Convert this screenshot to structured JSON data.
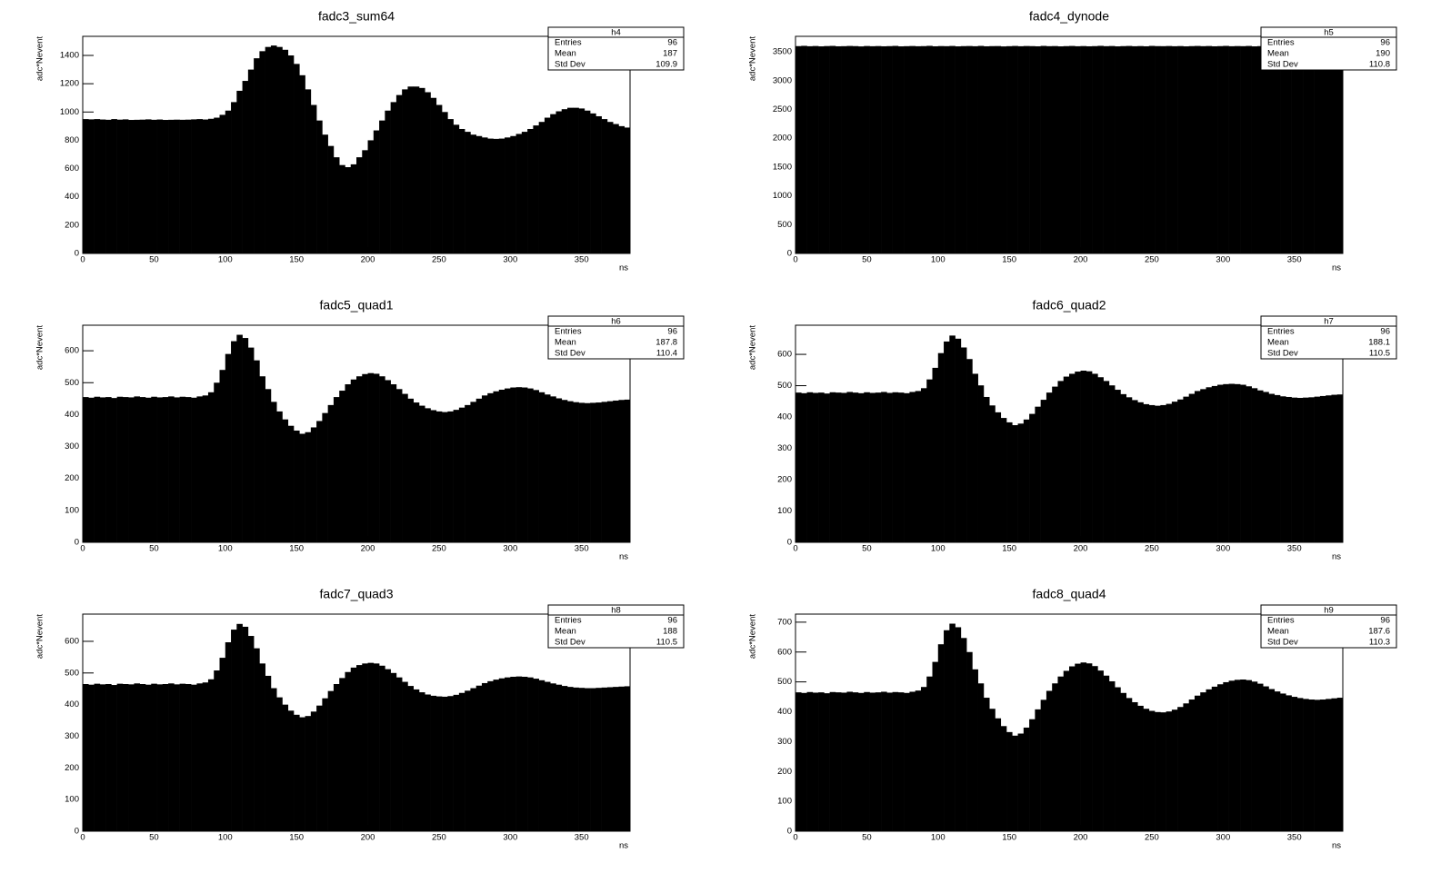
{
  "chart_data": [
    {
      "type": "histogram",
      "title": "fadc3_sum64",
      "x_label": "ns",
      "y_label": "adc*Nevent",
      "color": "#000000",
      "bins": [
        0,
        4,
        8,
        12,
        16,
        20,
        24,
        28,
        32,
        36,
        40,
        44,
        48,
        52,
        56,
        60,
        64,
        68,
        72,
        76,
        80,
        84,
        88,
        92,
        96,
        100,
        104,
        108,
        112,
        116,
        120,
        124,
        128,
        132,
        136,
        140,
        144,
        148,
        152,
        156,
        160,
        164,
        168,
        172,
        176,
        180,
        184,
        188,
        192,
        196,
        200,
        204,
        208,
        212,
        216,
        220,
        224,
        228,
        232,
        236,
        240,
        244,
        248,
        252,
        256,
        260,
        264,
        268,
        272,
        276,
        280,
        284,
        288,
        292,
        296,
        300,
        304,
        308,
        312,
        316,
        320,
        324,
        328,
        332,
        336,
        340,
        344,
        348,
        352,
        356,
        360,
        364,
        368,
        372,
        376,
        380,
        384
      ],
      "values": [
        950,
        948,
        950,
        947,
        945,
        950,
        946,
        948,
        944,
        945,
        946,
        948,
        945,
        947,
        944,
        945,
        946,
        945,
        946,
        948,
        950,
        947,
        952,
        960,
        980,
        1010,
        1070,
        1150,
        1220,
        1300,
        1380,
        1430,
        1460,
        1470,
        1460,
        1440,
        1400,
        1340,
        1260,
        1160,
        1050,
        940,
        840,
        760,
        680,
        625,
        610,
        630,
        680,
        730,
        800,
        870,
        940,
        1010,
        1070,
        1120,
        1160,
        1180,
        1180,
        1170,
        1140,
        1100,
        1050,
        1000,
        950,
        910,
        880,
        860,
        840,
        830,
        820,
        812,
        810,
        812,
        820,
        830,
        845,
        860,
        880,
        905,
        930,
        960,
        985,
        1005,
        1020,
        1030,
        1030,
        1025,
        1010,
        990,
        970,
        950,
        930,
        915,
        900,
        890
      ],
      "xlim": [
        0,
        384
      ],
      "xticks": [
        0,
        50,
        100,
        150,
        200,
        250,
        300,
        350
      ],
      "ylim": [
        0,
        1535
      ],
      "yticks": [
        0,
        200,
        400,
        600,
        800,
        1000,
        1200,
        1400
      ],
      "stats": {
        "name": "h4",
        "entries_label": "Entries",
        "entries": 96,
        "mean_label": "Mean",
        "mean": 187,
        "std_label": "Std Dev",
        "std": 109.9
      }
    },
    {
      "type": "histogram",
      "title": "fadc4_dynode",
      "x_label": "ns",
      "y_label": "adc*Nevent",
      "color": "#000000",
      "bins": [
        0,
        4,
        8,
        12,
        16,
        20,
        24,
        28,
        32,
        36,
        40,
        44,
        48,
        52,
        56,
        60,
        64,
        68,
        72,
        76,
        80,
        84,
        88,
        92,
        96,
        100,
        104,
        108,
        112,
        116,
        120,
        124,
        128,
        132,
        136,
        140,
        144,
        148,
        152,
        156,
        160,
        164,
        168,
        172,
        176,
        180,
        184,
        188,
        192,
        196,
        200,
        204,
        208,
        212,
        216,
        220,
        224,
        228,
        232,
        236,
        240,
        244,
        248,
        252,
        256,
        260,
        264,
        268,
        272,
        276,
        280,
        284,
        288,
        292,
        296,
        300,
        304,
        308,
        312,
        316,
        320,
        324,
        328,
        332,
        336,
        340,
        344,
        348,
        352,
        356,
        360,
        364,
        368,
        372,
        376,
        380,
        384
      ],
      "values": [
        3600,
        3605,
        3598,
        3602,
        3596,
        3601,
        3604,
        3597,
        3599,
        3603,
        3600,
        3595,
        3602,
        3598,
        3601,
        3597,
        3600,
        3604,
        3596,
        3599,
        3602,
        3598,
        3600,
        3605,
        3597,
        3601,
        3599,
        3603,
        3596,
        3600,
        3602,
        3598,
        3604,
        3597,
        3600,
        3601,
        3595,
        3599,
        3603,
        3598,
        3602,
        3600,
        3597,
        3604,
        3599,
        3601,
        3596,
        3600,
        3603,
        3598,
        3601,
        3597,
        3600,
        3605,
        3599,
        3602,
        3596,
        3600,
        3603,
        3598,
        3601,
        3597,
        3604,
        3600,
        3599,
        3602,
        3598,
        3601,
        3596,
        3600,
        3603,
        3599,
        3602,
        3597,
        3600,
        3604,
        3598,
        3601,
        3599,
        3603,
        3596,
        3600,
        3602,
        3598,
        3601,
        3597,
        3600,
        3604,
        3599,
        3602,
        3598,
        3600,
        3603,
        3597,
        3601,
        3599
      ],
      "xlim": [
        0,
        384
      ],
      "xticks": [
        0,
        50,
        100,
        150,
        200,
        250,
        300,
        350
      ],
      "ylim": [
        0,
        3770
      ],
      "yticks": [
        0,
        500,
        1000,
        1500,
        2000,
        2500,
        3000,
        3500
      ],
      "stats": {
        "name": "h5",
        "entries_label": "Entries",
        "entries": 96,
        "mean_label": "Mean",
        "mean": 190,
        "std_label": "Std Dev",
        "std": 110.8
      }
    },
    {
      "type": "histogram",
      "title": "fadc5_quad1",
      "x_label": "ns",
      "y_label": "adc*Nevent",
      "color": "#000000",
      "bins": [
        0,
        4,
        8,
        12,
        16,
        20,
        24,
        28,
        32,
        36,
        40,
        44,
        48,
        52,
        56,
        60,
        64,
        68,
        72,
        76,
        80,
        84,
        88,
        92,
        96,
        100,
        104,
        108,
        112,
        116,
        120,
        124,
        128,
        132,
        136,
        140,
        144,
        148,
        152,
        156,
        160,
        164,
        168,
        172,
        176,
        180,
        184,
        188,
        192,
        196,
        200,
        204,
        208,
        212,
        216,
        220,
        224,
        228,
        232,
        236,
        240,
        244,
        248,
        252,
        256,
        260,
        264,
        268,
        272,
        276,
        280,
        284,
        288,
        292,
        296,
        300,
        304,
        308,
        312,
        316,
        320,
        324,
        328,
        332,
        336,
        340,
        344,
        348,
        352,
        356,
        360,
        364,
        368,
        372,
        376,
        380,
        384
      ],
      "values": [
        455,
        453,
        456,
        454,
        455,
        452,
        456,
        455,
        454,
        457,
        455,
        453,
        456,
        454,
        455,
        457,
        454,
        456,
        455,
        453,
        457,
        460,
        470,
        500,
        540,
        590,
        630,
        650,
        640,
        610,
        570,
        520,
        480,
        440,
        410,
        385,
        365,
        350,
        340,
        345,
        360,
        380,
        405,
        430,
        455,
        475,
        495,
        510,
        520,
        527,
        530,
        528,
        520,
        508,
        495,
        480,
        465,
        450,
        438,
        428,
        420,
        414,
        410,
        408,
        410,
        415,
        422,
        430,
        440,
        450,
        460,
        467,
        473,
        478,
        482,
        485,
        486,
        485,
        482,
        477,
        470,
        463,
        457,
        451,
        446,
        442,
        439,
        437,
        436,
        437,
        438,
        440,
        442,
        444,
        446,
        447
      ],
      "xlim": [
        0,
        384
      ],
      "xticks": [
        0,
        50,
        100,
        150,
        200,
        250,
        300,
        350
      ],
      "ylim": [
        0,
        680
      ],
      "yticks": [
        0,
        100,
        200,
        300,
        400,
        500,
        600
      ],
      "stats": {
        "name": "h6",
        "entries_label": "Entries",
        "entries": 96,
        "mean_label": "Mean",
        "mean": 187.8,
        "std_label": "Std Dev",
        "std": 110.4
      }
    },
    {
      "type": "histogram",
      "title": "fadc6_quad2",
      "x_label": "ns",
      "y_label": "adc*Nevent",
      "color": "#000000",
      "bins": [
        0,
        4,
        8,
        12,
        16,
        20,
        24,
        28,
        32,
        36,
        40,
        44,
        48,
        52,
        56,
        60,
        64,
        68,
        72,
        76,
        80,
        84,
        88,
        92,
        96,
        100,
        104,
        108,
        112,
        116,
        120,
        124,
        128,
        132,
        136,
        140,
        144,
        148,
        152,
        156,
        160,
        164,
        168,
        172,
        176,
        180,
        184,
        188,
        192,
        196,
        200,
        204,
        208,
        212,
        216,
        220,
        224,
        228,
        232,
        236,
        240,
        244,
        248,
        252,
        256,
        260,
        264,
        268,
        272,
        276,
        280,
        284,
        288,
        292,
        296,
        300,
        304,
        308,
        312,
        316,
        320,
        324,
        328,
        332,
        336,
        340,
        344,
        348,
        352,
        356,
        360,
        364,
        368,
        372,
        376,
        380,
        384
      ],
      "values": [
        478,
        476,
        479,
        477,
        478,
        475,
        479,
        478,
        477,
        480,
        478,
        476,
        479,
        477,
        478,
        480,
        477,
        479,
        478,
        476,
        480,
        483,
        492,
        520,
        557,
        604,
        641,
        660,
        650,
        622,
        585,
        538,
        501,
        464,
        437,
        415,
        397,
        383,
        374,
        379,
        392,
        410,
        433,
        455,
        478,
        497,
        515,
        529,
        538,
        545,
        548,
        546,
        538,
        527,
        515,
        501,
        487,
        473,
        463,
        454,
        447,
        441,
        438,
        436,
        438,
        442,
        449,
        456,
        465,
        474,
        483,
        489,
        495,
        499,
        503,
        505,
        506,
        505,
        503,
        498,
        492,
        485,
        480,
        474,
        470,
        466,
        464,
        462,
        461,
        462,
        463,
        465,
        467,
        469,
        471,
        472
      ],
      "xlim": [
        0,
        384
      ],
      "xticks": [
        0,
        50,
        100,
        150,
        200,
        250,
        300,
        350
      ],
      "ylim": [
        0,
        693
      ],
      "yticks": [
        0,
        100,
        200,
        300,
        400,
        500,
        600
      ],
      "stats": {
        "name": "h7",
        "entries_label": "Entries",
        "entries": 96,
        "mean_label": "Mean",
        "mean": 188.1,
        "std_label": "Std Dev",
        "std": 110.5
      }
    },
    {
      "type": "histogram",
      "title": "fadc7_quad3",
      "x_label": "ns",
      "y_label": "adc*Nevent",
      "color": "#000000",
      "bins": [
        0,
        4,
        8,
        12,
        16,
        20,
        24,
        28,
        32,
        36,
        40,
        44,
        48,
        52,
        56,
        60,
        64,
        68,
        72,
        76,
        80,
        84,
        88,
        92,
        96,
        100,
        104,
        108,
        112,
        116,
        120,
        124,
        128,
        132,
        136,
        140,
        144,
        148,
        152,
        156,
        160,
        164,
        168,
        172,
        176,
        180,
        184,
        188,
        192,
        196,
        200,
        204,
        208,
        212,
        216,
        220,
        224,
        228,
        232,
        236,
        240,
        244,
        248,
        252,
        256,
        260,
        264,
        268,
        272,
        276,
        280,
        284,
        288,
        292,
        296,
        300,
        304,
        308,
        312,
        316,
        320,
        324,
        328,
        332,
        336,
        340,
        344,
        348,
        352,
        356,
        360,
        364,
        368,
        372,
        376,
        380,
        384
      ],
      "values": [
        465,
        463,
        466,
        464,
        465,
        462,
        466,
        465,
        464,
        467,
        465,
        463,
        466,
        464,
        465,
        467,
        464,
        466,
        465,
        463,
        467,
        470,
        480,
        508,
        548,
        597,
        637,
        655,
        646,
        617,
        578,
        530,
        491,
        452,
        423,
        400,
        381,
        368,
        360,
        364,
        378,
        397,
        420,
        443,
        465,
        484,
        503,
        517,
        525,
        530,
        532,
        530,
        523,
        512,
        500,
        486,
        472,
        459,
        448,
        439,
        432,
        428,
        426,
        425,
        427,
        431,
        437,
        444,
        452,
        460,
        468,
        474,
        479,
        483,
        486,
        488,
        489,
        488,
        486,
        482,
        477,
        472,
        467,
        463,
        459,
        456,
        454,
        453,
        452,
        452,
        453,
        454,
        455,
        456,
        457,
        458
      ],
      "xlim": [
        0,
        384
      ],
      "xticks": [
        0,
        50,
        100,
        150,
        200,
        250,
        300,
        350
      ],
      "ylim": [
        0,
        686
      ],
      "yticks": [
        0,
        100,
        200,
        300,
        400,
        500,
        600
      ],
      "stats": {
        "name": "h8",
        "entries_label": "Entries",
        "entries": 96,
        "mean_label": "Mean",
        "mean": 188,
        "std_label": "Std Dev",
        "std": 110.5
      }
    },
    {
      "type": "histogram",
      "title": "fadc8_quad4",
      "x_label": "ns",
      "y_label": "adc*Nevent",
      "color": "#000000",
      "bins": [
        0,
        4,
        8,
        12,
        16,
        20,
        24,
        28,
        32,
        36,
        40,
        44,
        48,
        52,
        56,
        60,
        64,
        68,
        72,
        76,
        80,
        84,
        88,
        92,
        96,
        100,
        104,
        108,
        112,
        116,
        120,
        124,
        128,
        132,
        136,
        140,
        144,
        148,
        152,
        156,
        160,
        164,
        168,
        172,
        176,
        180,
        184,
        188,
        192,
        196,
        200,
        204,
        208,
        212,
        216,
        220,
        224,
        228,
        232,
        236,
        240,
        244,
        248,
        252,
        256,
        260,
        264,
        268,
        272,
        276,
        280,
        284,
        288,
        292,
        296,
        300,
        304,
        308,
        312,
        316,
        320,
        324,
        328,
        332,
        336,
        340,
        344,
        348,
        352,
        356,
        360,
        364,
        368,
        372,
        376,
        380,
        384
      ],
      "values": [
        465,
        463,
        466,
        464,
        465,
        462,
        466,
        465,
        464,
        467,
        465,
        463,
        466,
        464,
        465,
        467,
        464,
        466,
        465,
        463,
        467,
        471,
        483,
        518,
        567,
        626,
        673,
        695,
        683,
        647,
        600,
        542,
        495,
        447,
        410,
        378,
        352,
        332,
        320,
        327,
        347,
        375,
        408,
        440,
        470,
        495,
        518,
        537,
        552,
        561,
        565,
        562,
        553,
        538,
        521,
        502,
        482,
        463,
        446,
        432,
        420,
        410,
        403,
        399,
        398,
        401,
        407,
        416,
        428,
        441,
        454,
        465,
        475,
        484,
        492,
        499,
        504,
        507,
        508,
        506,
        501,
        494,
        485,
        476,
        468,
        461,
        455,
        450,
        446,
        443,
        441,
        440,
        441,
        443,
        445,
        447
      ],
      "xlim": [
        0,
        384
      ],
      "xticks": [
        0,
        50,
        100,
        150,
        200,
        250,
        300,
        350
      ],
      "ylim": [
        0,
        727
      ],
      "yticks": [
        0,
        100,
        200,
        300,
        400,
        500,
        600,
        700
      ],
      "stats": {
        "name": "h9",
        "entries_label": "Entries",
        "entries": 96,
        "mean_label": "Mean",
        "mean": 187.6,
        "std_label": "Std Dev",
        "std": 110.3
      }
    }
  ]
}
